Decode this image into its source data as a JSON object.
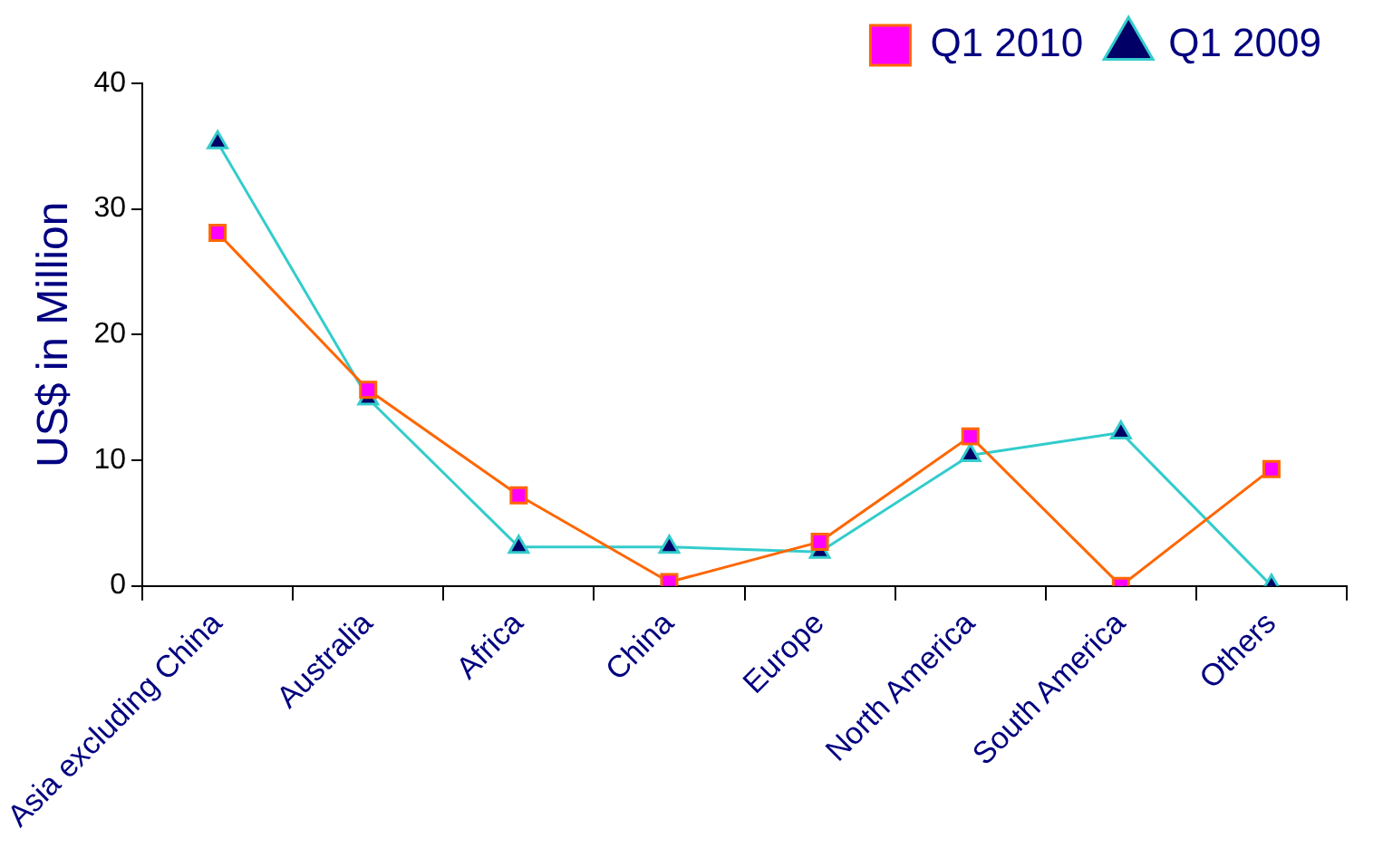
{
  "chart_data": {
    "type": "line",
    "ylabel": "US$ in Million",
    "categories": [
      "Asia excluding China",
      "Australia",
      "Africa",
      "China",
      "Europe",
      "North America",
      "South America",
      "Others"
    ],
    "series": [
      {
        "name": "Q1 2010",
        "color": "#ff6600",
        "marker": "square",
        "values": [
          28.1,
          15.6,
          7.2,
          0.3,
          3.5,
          11.9,
          0,
          9.3
        ]
      },
      {
        "name": "Q1 2009",
        "color": "#33cccc",
        "marker": "triangle",
        "values": [
          35.3,
          14.9,
          3.1,
          3.1,
          2.7,
          10.4,
          12.2,
          0
        ]
      }
    ],
    "ylim": [
      0,
      40
    ],
    "yticks": [
      0,
      10,
      20,
      30,
      40
    ],
    "grid": false,
    "legend": "top right",
    "line_style": "solid"
  }
}
